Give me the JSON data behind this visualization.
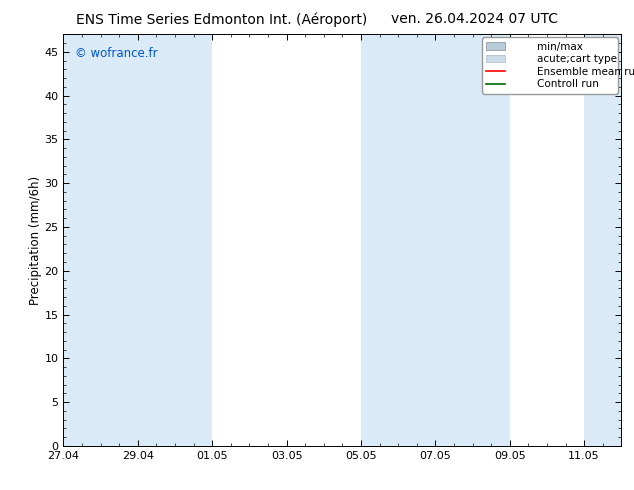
{
  "title_left": "ENS Time Series Edmonton Int. (Aéroport)",
  "title_right": "ven. 26.04.2024 07 UTC",
  "ylabel": "Precipitation (mm/6h)",
  "watermark": "© wofrance.fr",
  "watermark_color": "#0055cc",
  "ylim": [
    0,
    47
  ],
  "yticks": [
    0,
    5,
    10,
    15,
    20,
    25,
    30,
    35,
    40,
    45
  ],
  "xtick_labels": [
    "27.04",
    "29.04",
    "01.05",
    "03.05",
    "05.05",
    "07.05",
    "09.05",
    "11.05"
  ],
  "xtick_positions": [
    0,
    2,
    4,
    6,
    8,
    10,
    12,
    14
  ],
  "xlim": [
    0,
    15
  ],
  "shade_color": "#daeaf7",
  "shade_alpha": 1.0,
  "background_color": "#ffffff",
  "shaded_bands_days": [
    [
      0.0,
      2.0
    ],
    [
      2.0,
      4.0
    ],
    [
      8.0,
      10.0
    ],
    [
      10.0,
      12.0
    ],
    [
      14.0,
      15.0
    ]
  ],
  "minmax_color": "#b8ccd8",
  "acute_color": "#ccdde8",
  "ensemble_color": "#ff0000",
  "control_color": "#006600",
  "font_size_title": 10,
  "font_size_ticks": 8,
  "font_size_legend": 7.5,
  "font_size_ylabel": 8.5,
  "font_size_watermark": 8.5
}
